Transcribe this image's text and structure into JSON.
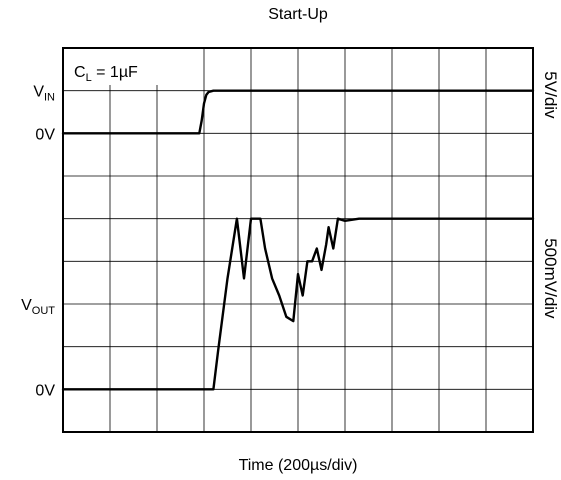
{
  "chart_data": {
    "type": "line",
    "title": "Start-Up",
    "xlabel": "Time (200µs/div)",
    "x_divisions": 10,
    "y_divisions": 9,
    "xlim": [
      0,
      10
    ],
    "ylim": [
      0,
      9
    ],
    "grid": true,
    "annotation": {
      "base": "C",
      "sub": "L",
      "rest": " = 1µF"
    },
    "left_labels": [
      {
        "base": "V",
        "sub": "IN",
        "y": 8.0
      },
      {
        "base": "0V",
        "sub": "",
        "y": 7.0
      },
      {
        "base": "V",
        "sub": "OUT",
        "y": 3.0
      },
      {
        "base": "0V",
        "sub": "",
        "y": 1.0
      }
    ],
    "right_labels": [
      {
        "text": "5V/div",
        "y": 7.9
      },
      {
        "text": "500mV/div",
        "y": 3.6
      }
    ],
    "series": [
      {
        "x": [
          0,
          2.9,
          2.95,
          3.0,
          3.05,
          3.1,
          3.2,
          3.4,
          10
        ],
        "y": [
          7.0,
          7.0,
          7.3,
          7.7,
          7.9,
          7.97,
          8.0,
          8.0,
          8.0
        ]
      },
      {
        "x": [
          0,
          2.0,
          3.2,
          3.3,
          3.5,
          3.7,
          3.85,
          4.0,
          4.1,
          4.2,
          4.3,
          4.45,
          4.6,
          4.75,
          4.9,
          5.0,
          5.1,
          5.2,
          5.3,
          5.4,
          5.5,
          5.6,
          5.65,
          5.75,
          5.85,
          6.0,
          6.3,
          6.6,
          7.0,
          8.0,
          9.0,
          10
        ],
        "y": [
          1.0,
          1.0,
          1.0,
          1.9,
          3.6,
          5.0,
          3.6,
          5.0,
          5.0,
          5.0,
          4.3,
          3.6,
          3.2,
          2.7,
          2.6,
          3.7,
          3.2,
          4.0,
          4.0,
          4.3,
          3.8,
          4.4,
          4.8,
          4.3,
          5.0,
          4.95,
          5.0,
          5.0,
          5.0,
          5.0,
          5.0,
          5.0
        ]
      }
    ]
  }
}
